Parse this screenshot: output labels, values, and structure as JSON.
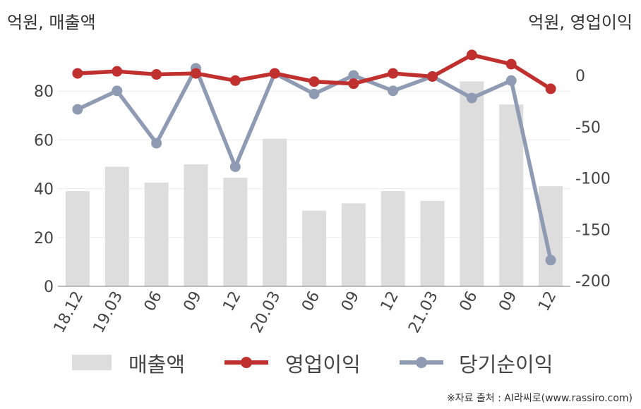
{
  "chart_data": {
    "type": "bar+line",
    "left_axis_title": "억원, 매출액",
    "right_axis_title": "억원, 영업이익",
    "categories": [
      "18.12",
      "19.03",
      "06",
      "09",
      "12",
      "20.03",
      "06",
      "09",
      "12",
      "21.03",
      "06",
      "09",
      "12"
    ],
    "left_ylim": [
      0,
      90
    ],
    "left_yticks": [
      0,
      20,
      40,
      60,
      80
    ],
    "right_ylim": [
      -205,
      20
    ],
    "right_yticks": [
      0,
      -50,
      -100,
      -150,
      -200
    ],
    "series": [
      {
        "name": "매출액",
        "kind": "bar",
        "axis": "left",
        "color": "#dddddd",
        "values": [
          39,
          49,
          42.5,
          50,
          44.5,
          60.5,
          31,
          34,
          39,
          35,
          84,
          74.5,
          41
        ]
      },
      {
        "name": "영업이익",
        "kind": "line",
        "axis": "right",
        "color": "#c0302e",
        "values": [
          2,
          4,
          1,
          2,
          -5,
          2,
          -6,
          -8,
          2,
          -1,
          20,
          11,
          -13
        ]
      },
      {
        "name": "당기순이익",
        "kind": "line",
        "axis": "right",
        "color": "#8f9ab3",
        "values": [
          -33,
          -15,
          -66,
          7,
          -89,
          2,
          -18,
          0,
          -15,
          -1,
          -22,
          -5,
          -180
        ]
      }
    ],
    "grid": true,
    "legend_position": "bottom"
  },
  "legend": {
    "sales": "매출액",
    "operating": "영업이익",
    "net": "당기순이익"
  },
  "source": "※자료 출처 : AI라씨로(www.rassiro.com)"
}
